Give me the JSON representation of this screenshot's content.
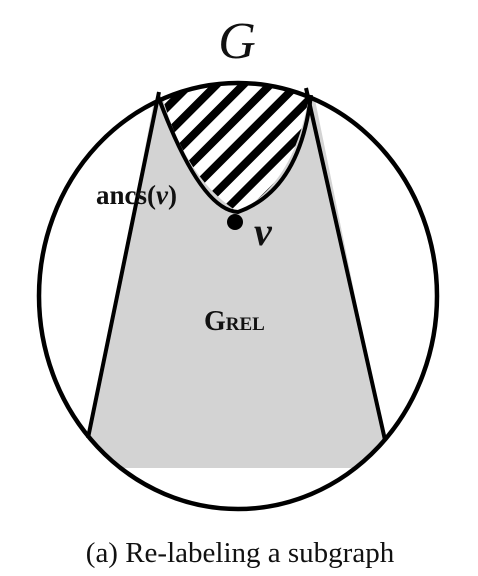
{
  "diagram": {
    "graph_label": "G",
    "vertex_label": "v",
    "ancestors_label": {
      "prefix": "ancs(",
      "variable": "v",
      "suffix": ")"
    },
    "relabeled_region_label": {
      "main": "G",
      "subscript": "REL"
    },
    "caption": "(a) Re-labeling a subgraph",
    "colors": {
      "outline": "#000000",
      "region_fill": "#d3d3d3",
      "hatch": "#000000",
      "background": "#ffffff"
    }
  }
}
